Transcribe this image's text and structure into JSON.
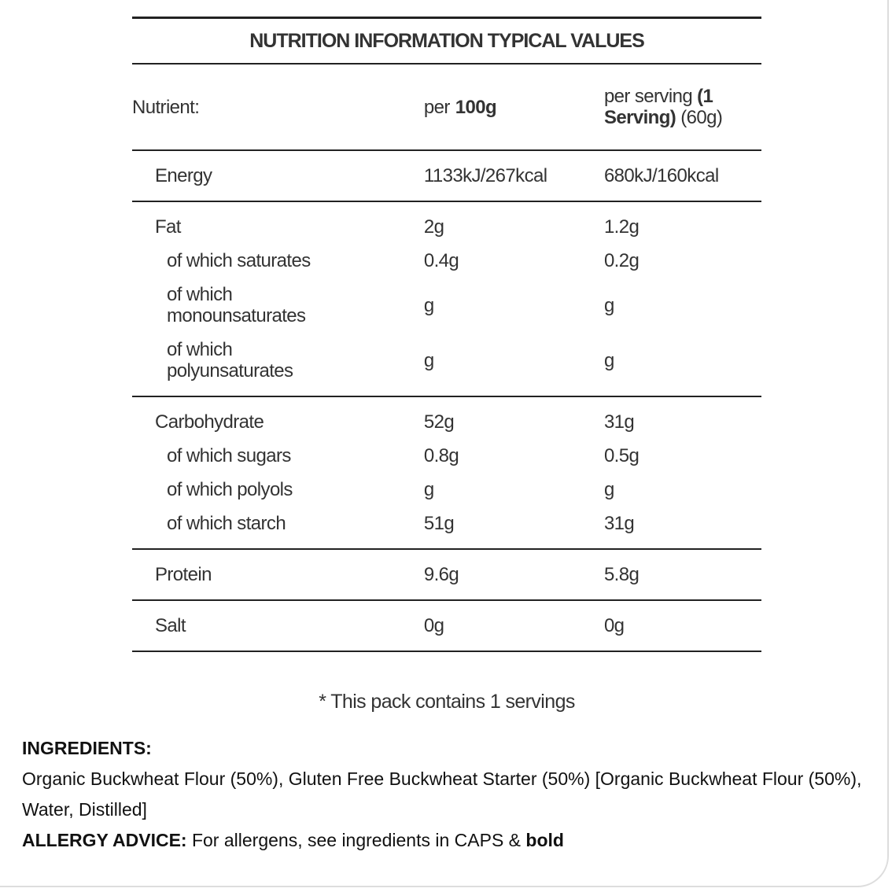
{
  "table": {
    "title": "NUTRITION INFORMATION TYPICAL VALUES",
    "header": {
      "nutrient": "Nutrient:",
      "per100": [
        "per",
        "100g"
      ],
      "per_serving": [
        "per serving",
        "(1 Serving)",
        "(60g)"
      ]
    },
    "groups": [
      [
        [
          "Energy",
          "1133kJ/267kcal",
          "680kJ/160kcal"
        ]
      ],
      [
        [
          "Fat",
          "2g",
          "1.2g"
        ],
        [
          "of which saturates",
          "0.4g",
          "0.2g"
        ],
        [
          "of which monounsaturates",
          "g",
          "g"
        ],
        [
          "of which polyunsaturates",
          "g",
          "g"
        ]
      ],
      [
        [
          "Carbohydrate",
          "52g",
          "31g"
        ],
        [
          "of which sugars",
          "0.8g",
          "0.5g"
        ],
        [
          "of which polyols",
          "g",
          "g"
        ],
        [
          "of which starch",
          "51g",
          "31g"
        ]
      ],
      [
        [
          "Protein",
          "9.6g",
          "5.8g"
        ]
      ],
      [
        [
          "Salt",
          "0g",
          "0g"
        ]
      ]
    ]
  },
  "footnote": "* This pack contains 1 servings",
  "ingredients": {
    "heading": "INGREDIENTS:",
    "text": "Organic Buckwheat Flour (50%), Gluten Free Buckwheat Starter (50%) [Organic Buckwheat Flour (50%), Water, Distilled]",
    "allergy_label": "ALLERGY ADVICE:",
    "allergy_text": "For allergens, see ingredients in CAPS &",
    "allergy_bold": "bold"
  }
}
